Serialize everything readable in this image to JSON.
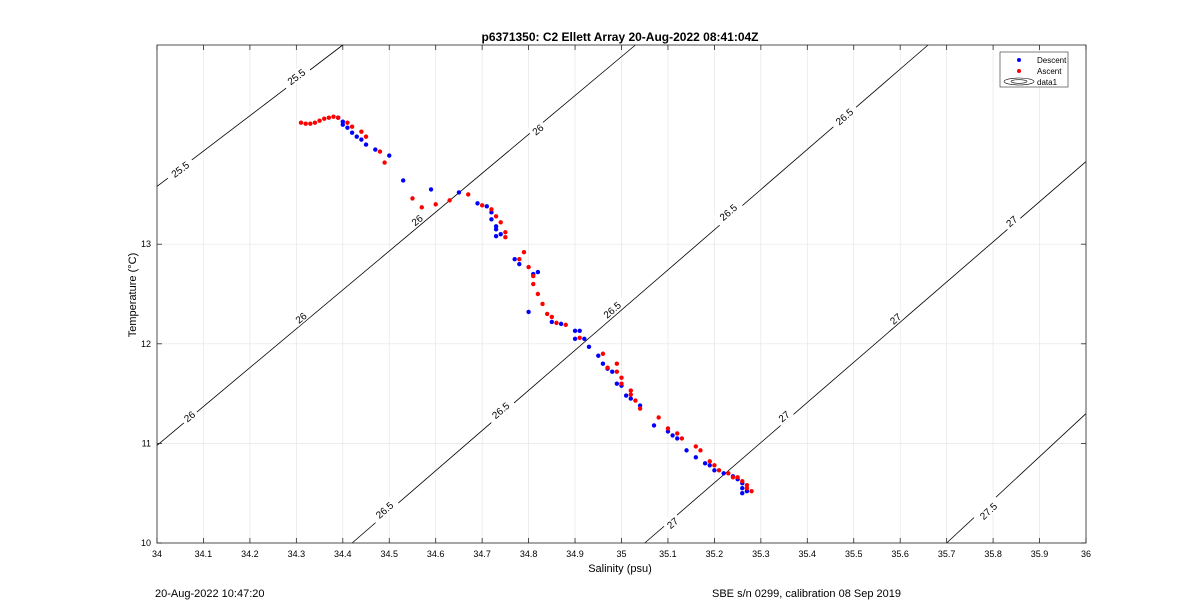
{
  "chart_data": {
    "type": "scatter",
    "title": "p6371350: C2 Ellett Array 20-Aug-2022 08:41:04Z",
    "xlabel": "Salinity (psu)",
    "ylabel": "Temperature (°C)",
    "xlim": [
      34,
      36
    ],
    "ylim": [
      10,
      15
    ],
    "x_ticks": [
      34,
      34.1,
      34.2,
      34.3,
      34.4,
      34.5,
      34.6,
      34.7,
      34.8,
      34.9,
      35,
      35.1,
      35.2,
      35.3,
      35.4,
      35.5,
      35.6,
      35.7,
      35.8,
      35.9,
      36
    ],
    "x_tick_labels": [
      "34",
      "34.1",
      "34.2",
      "34.3",
      "34.4",
      "34.5",
      "34.6",
      "34.7",
      "34.8",
      "34.9",
      "35",
      "35.1",
      "35.2",
      "35.3",
      "35.4",
      "35.5",
      "35.6",
      "35.7",
      "35.8",
      "35.9",
      "36"
    ],
    "y_ticks": [
      10,
      11,
      12,
      13
    ],
    "y_tick_labels": [
      "10",
      "11",
      "12",
      "13"
    ],
    "grid": true,
    "legend": {
      "position": "top-right",
      "entries": [
        "Descent",
        "Ascent",
        "data1"
      ]
    },
    "colors": {
      "descent": "#0000ff",
      "ascent": "#ff0000",
      "contour": "#000000",
      "grid": "#e6e6e6"
    },
    "contour_levels": [
      {
        "label": "25.5",
        "points": [
          [
            34.0,
            13.58
          ],
          [
            34.4,
            15.0
          ]
        ]
      },
      {
        "label": "26",
        "points": [
          [
            34.0,
            10.98
          ],
          [
            35.03,
            15.0
          ]
        ]
      },
      {
        "label": "26.5",
        "points": [
          [
            34.42,
            10.0
          ],
          [
            35.66,
            15.0
          ]
        ]
      },
      {
        "label": "27",
        "points": [
          [
            35.05,
            10.0
          ],
          [
            36.0,
            13.83
          ]
        ]
      },
      {
        "label": "27.5",
        "points": [
          [
            35.7,
            10.0
          ],
          [
            36.0,
            11.3
          ]
        ]
      }
    ],
    "contour_label_positions": [
      {
        "label": "25.5",
        "x": 34.3,
        "y": 14.68
      },
      {
        "label": "25.5",
        "x": 34.05,
        "y": 13.75
      },
      {
        "label": "26",
        "x": 34.82,
        "y": 14.15
      },
      {
        "label": "26",
        "x": 34.56,
        "y": 13.24
      },
      {
        "label": "26",
        "x": 34.31,
        "y": 12.26
      },
      {
        "label": "26",
        "x": 34.07,
        "y": 11.27
      },
      {
        "label": "26.5",
        "x": 35.48,
        "y": 14.28
      },
      {
        "label": "26.5",
        "x": 35.23,
        "y": 13.32
      },
      {
        "label": "26.5",
        "x": 34.98,
        "y": 12.34
      },
      {
        "label": "26.5",
        "x": 34.74,
        "y": 11.33
      },
      {
        "label": "26.5",
        "x": 34.49,
        "y": 10.33
      },
      {
        "label": "27",
        "x": 35.84,
        "y": 13.23
      },
      {
        "label": "27",
        "x": 35.59,
        "y": 12.25
      },
      {
        "label": "27",
        "x": 35.35,
        "y": 11.27
      },
      {
        "label": "27",
        "x": 35.11,
        "y": 10.2
      },
      {
        "label": "27.5",
        "x": 35.79,
        "y": 10.32
      }
    ],
    "series": [
      {
        "name": "Descent",
        "points": [
          [
            34.39,
            14.27
          ],
          [
            34.4,
            14.23
          ],
          [
            34.4,
            14.2
          ],
          [
            34.41,
            14.17
          ],
          [
            34.42,
            14.12
          ],
          [
            34.43,
            14.08
          ],
          [
            34.44,
            14.05
          ],
          [
            34.45,
            14.0
          ],
          [
            34.47,
            13.95
          ],
          [
            34.5,
            13.89
          ],
          [
            34.53,
            13.64
          ],
          [
            34.59,
            13.55
          ],
          [
            34.65,
            13.52
          ],
          [
            34.69,
            13.41
          ],
          [
            34.71,
            13.38
          ],
          [
            34.72,
            13.32
          ],
          [
            34.72,
            13.25
          ],
          [
            34.73,
            13.18
          ],
          [
            34.73,
            13.15
          ],
          [
            34.73,
            13.08
          ],
          [
            34.74,
            13.1
          ],
          [
            34.77,
            12.85
          ],
          [
            34.78,
            12.8
          ],
          [
            34.81,
            12.7
          ],
          [
            34.82,
            12.72
          ],
          [
            34.8,
            12.32
          ],
          [
            34.85,
            12.22
          ],
          [
            34.87,
            12.2
          ],
          [
            34.9,
            12.05
          ],
          [
            34.9,
            12.13
          ],
          [
            34.91,
            12.13
          ],
          [
            34.92,
            12.05
          ],
          [
            34.93,
            11.97
          ],
          [
            34.95,
            11.88
          ],
          [
            34.96,
            11.8
          ],
          [
            34.97,
            11.75
          ],
          [
            34.98,
            11.72
          ],
          [
            34.99,
            11.6
          ],
          [
            35.0,
            11.58
          ],
          [
            35.01,
            11.48
          ],
          [
            35.02,
            11.45
          ],
          [
            35.04,
            11.38
          ],
          [
            35.07,
            11.18
          ],
          [
            35.1,
            11.12
          ],
          [
            35.11,
            11.08
          ],
          [
            35.12,
            11.05
          ],
          [
            35.14,
            10.93
          ],
          [
            35.16,
            10.86
          ],
          [
            35.18,
            10.8
          ],
          [
            35.19,
            10.78
          ],
          [
            35.2,
            10.73
          ],
          [
            35.22,
            10.7
          ],
          [
            35.24,
            10.67
          ],
          [
            35.25,
            10.64
          ],
          [
            35.26,
            10.6
          ],
          [
            35.26,
            10.55
          ],
          [
            35.27,
            10.52
          ],
          [
            35.26,
            10.5
          ]
        ]
      },
      {
        "name": "Ascent",
        "points": [
          [
            34.31,
            14.22
          ],
          [
            34.32,
            14.21
          ],
          [
            34.33,
            14.21
          ],
          [
            34.34,
            14.22
          ],
          [
            34.35,
            14.24
          ],
          [
            34.36,
            14.26
          ],
          [
            34.37,
            14.27
          ],
          [
            34.38,
            14.28
          ],
          [
            34.39,
            14.27
          ],
          [
            34.41,
            14.22
          ],
          [
            34.42,
            14.18
          ],
          [
            34.44,
            14.13
          ],
          [
            34.45,
            14.08
          ],
          [
            34.48,
            13.93
          ],
          [
            34.49,
            13.82
          ],
          [
            34.55,
            13.46
          ],
          [
            34.57,
            13.37
          ],
          [
            34.6,
            13.4
          ],
          [
            34.63,
            13.44
          ],
          [
            34.67,
            13.5
          ],
          [
            34.7,
            13.39
          ],
          [
            34.72,
            13.35
          ],
          [
            34.73,
            13.28
          ],
          [
            34.74,
            13.22
          ],
          [
            34.75,
            13.12
          ],
          [
            34.75,
            13.07
          ],
          [
            34.79,
            12.92
          ],
          [
            34.78,
            12.85
          ],
          [
            34.8,
            12.77
          ],
          [
            34.81,
            12.68
          ],
          [
            34.81,
            12.6
          ],
          [
            34.82,
            12.5
          ],
          [
            34.83,
            12.4
          ],
          [
            34.84,
            12.3
          ],
          [
            34.85,
            12.27
          ],
          [
            34.86,
            12.21
          ],
          [
            34.88,
            12.19
          ],
          [
            34.91,
            12.06
          ],
          [
            34.96,
            11.9
          ],
          [
            34.97,
            11.76
          ],
          [
            34.99,
            11.8
          ],
          [
            34.99,
            11.72
          ],
          [
            35.0,
            11.66
          ],
          [
            35.0,
            11.6
          ],
          [
            35.02,
            11.53
          ],
          [
            35.02,
            11.49
          ],
          [
            35.03,
            11.43
          ],
          [
            35.04,
            11.35
          ],
          [
            35.08,
            11.26
          ],
          [
            35.1,
            11.15
          ],
          [
            35.12,
            11.1
          ],
          [
            35.13,
            11.05
          ],
          [
            35.16,
            10.97
          ],
          [
            35.17,
            10.93
          ],
          [
            35.19,
            10.82
          ],
          [
            35.2,
            10.78
          ],
          [
            35.21,
            10.73
          ],
          [
            35.23,
            10.7
          ],
          [
            35.24,
            10.66
          ],
          [
            35.25,
            10.66
          ],
          [
            35.26,
            10.62
          ],
          [
            35.27,
            10.58
          ],
          [
            35.27,
            10.55
          ],
          [
            35.28,
            10.52
          ]
        ]
      }
    ]
  },
  "footer": {
    "timestamp": "20-Aug-2022 10:47:20",
    "calibration": "SBE s/n 0299, calibration 08 Sep 2019"
  }
}
